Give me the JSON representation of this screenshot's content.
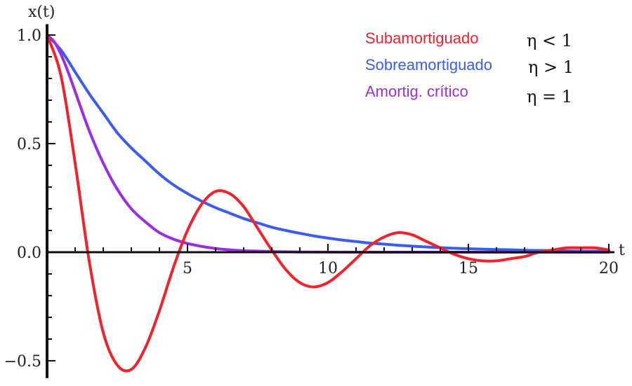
{
  "chart_data": {
    "type": "line",
    "xlabel": "t",
    "ylabel": "x(t)",
    "xlim": [
      0,
      20
    ],
    "ylim": [
      -0.58,
      1.05
    ],
    "x_ticks": [
      {
        "value": 5,
        "label": "5"
      },
      {
        "value": 10,
        "label": "10"
      },
      {
        "value": 15,
        "label": "15"
      },
      {
        "value": 20,
        "label": "20"
      }
    ],
    "y_ticks": [
      {
        "value": 1.0,
        "label": "1.0"
      },
      {
        "value": 0.5,
        "label": "0.5"
      },
      {
        "value": 0.0,
        "label": "0.0"
      },
      {
        "value": -0.5,
        "label": "−0.5"
      }
    ],
    "grid": false,
    "legend_position": "top-right",
    "series": [
      {
        "name": "Subamortiguado",
        "condition": "η < 1",
        "color": "#f0232d",
        "x": [
          0,
          0.5,
          1,
          1.5,
          2,
          2.5,
          3,
          3.5,
          4,
          4.5,
          5,
          5.5,
          6,
          6.5,
          7,
          7.5,
          8,
          8.5,
          9,
          9.5,
          10,
          10.5,
          11,
          11.5,
          12,
          12.5,
          13,
          13.5,
          14,
          14.5,
          15,
          15.5,
          16,
          16.5,
          17,
          17.5,
          18,
          18.5,
          19,
          19.5,
          20
        ],
        "values": [
          1.0,
          0.81,
          0.41,
          -0.04,
          -0.37,
          -0.52,
          -0.54,
          -0.44,
          -0.27,
          -0.07,
          0.1,
          0.22,
          0.28,
          0.27,
          0.21,
          0.11,
          0.01,
          -0.08,
          -0.14,
          -0.16,
          -0.14,
          -0.09,
          -0.03,
          0.03,
          0.07,
          0.09,
          0.08,
          0.05,
          0.02,
          -0.01,
          -0.03,
          -0.04,
          -0.04,
          -0.03,
          -0.02,
          0.0,
          0.01,
          0.02,
          0.02,
          0.02,
          0.01
        ]
      },
      {
        "name": "Sobreamortiguado",
        "condition": "η > 1",
        "color": "#3b5cf2",
        "x": [
          0,
          0.5,
          1,
          1.5,
          2,
          2.5,
          3,
          3.5,
          4,
          4.5,
          5,
          5.5,
          6,
          6.5,
          7,
          7.5,
          8,
          8.5,
          9,
          9.5,
          10,
          10.5,
          11,
          11.5,
          12,
          12.5,
          13,
          13.5,
          14,
          14.5,
          15,
          15.5,
          16,
          16.5,
          17,
          17.5,
          18,
          18.5,
          19,
          19.5,
          20
        ],
        "values": [
          1.0,
          0.93,
          0.83,
          0.73,
          0.64,
          0.55,
          0.48,
          0.42,
          0.36,
          0.31,
          0.27,
          0.235,
          0.205,
          0.18,
          0.155,
          0.135,
          0.115,
          0.1,
          0.087,
          0.075,
          0.065,
          0.056,
          0.049,
          0.042,
          0.037,
          0.032,
          0.028,
          0.024,
          0.021,
          0.018,
          0.016,
          0.014,
          0.012,
          0.011,
          0.009,
          0.008,
          0.007,
          0.006,
          0.005,
          0.005,
          0.004
        ]
      },
      {
        "name": "Amortig. crítico",
        "condition": "η = 1",
        "color": "#9b2ee0",
        "x": [
          0,
          0.25,
          0.5,
          0.75,
          1,
          1.5,
          2,
          2.5,
          3,
          3.5,
          4,
          4.5,
          5,
          5.5,
          6,
          6.5,
          7,
          7.5,
          8,
          9,
          10,
          12,
          14,
          16,
          18,
          20
        ],
        "values": [
          1.0,
          0.97,
          0.91,
          0.83,
          0.74,
          0.56,
          0.41,
          0.29,
          0.2,
          0.14,
          0.09,
          0.06,
          0.04,
          0.027,
          0.017,
          0.011,
          0.007,
          0.005,
          0.003,
          0.001,
          0.0005,
          0.0,
          0.0,
          0.0,
          0.0,
          0.0
        ]
      }
    ]
  }
}
